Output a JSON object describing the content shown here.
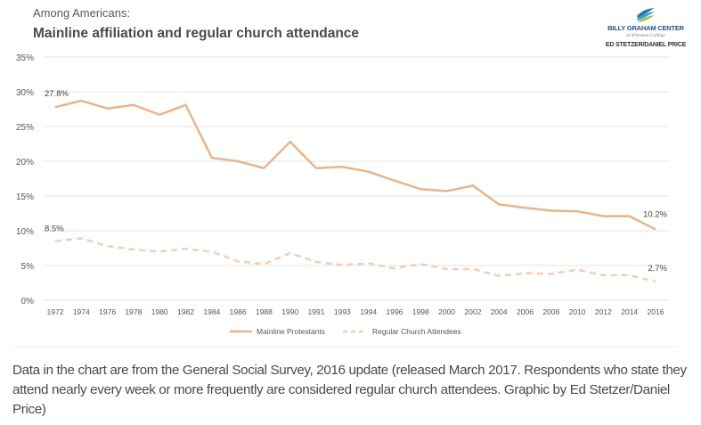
{
  "header": {
    "subtitle": "Among Americans:",
    "title": "Mainline affiliation and regular church attendance"
  },
  "logo": {
    "name": "BILLY GRAHAM CENTER",
    "sub": "at Wheaton College",
    "credit": "ED STETZER/DANIEL PRICE"
  },
  "caption": "Data in the chart are from the General Social Survey, 2016 update (released March 2017. Respondents who state they attend nearly every week or more frequently are considered regular church attendees. Graphic by Ed Stetzer/Daniel Price)",
  "chart_data": {
    "type": "line",
    "title": "Mainline affiliation and regular church attendance",
    "subtitle": "Among Americans:",
    "xlabel": "",
    "ylabel": "",
    "ylim": [
      0,
      35
    ],
    "yticks": [
      0,
      5,
      10,
      15,
      20,
      25,
      30,
      35
    ],
    "ytick_labels": [
      "0%",
      "5%",
      "10%",
      "15%",
      "20%",
      "25%",
      "30%",
      "35%"
    ],
    "grid": true,
    "legend_position": "bottom-center",
    "categories": [
      "1972",
      "1974",
      "1976",
      "1978",
      "1980",
      "1982",
      "1984",
      "1986",
      "1988",
      "1990",
      "1991",
      "1993",
      "1994",
      "1996",
      "1998",
      "2000",
      "2002",
      "2004",
      "2006",
      "2008",
      "2010",
      "2012",
      "2014",
      "2016"
    ],
    "series": [
      {
        "name": "Mainline Protestants",
        "style": "solid",
        "color": "#e8b48c",
        "values": [
          27.8,
          28.7,
          27.6,
          28.1,
          26.7,
          28.1,
          20.5,
          20.0,
          19.0,
          22.8,
          19.0,
          19.2,
          18.5,
          17.2,
          16.0,
          15.7,
          16.5,
          13.8,
          13.3,
          12.9,
          12.8,
          12.1,
          12.1,
          10.2
        ],
        "annotations": [
          {
            "index": 0,
            "text": "27.8%"
          },
          {
            "index": 23,
            "text": "10.2%"
          }
        ]
      },
      {
        "name": "Regular Church Attendees",
        "style": "dashed",
        "color": "#f2cfb4",
        "values": [
          8.5,
          8.9,
          7.8,
          7.3,
          7.0,
          7.4,
          7.0,
          5.6,
          5.2,
          6.8,
          5.5,
          5.1,
          5.3,
          4.6,
          5.2,
          4.5,
          4.5,
          3.5,
          3.9,
          3.8,
          4.4,
          3.6,
          3.6,
          2.7
        ],
        "annotations": [
          {
            "index": 0,
            "text": "8.5%"
          },
          {
            "index": 23,
            "text": "2.7%"
          }
        ]
      }
    ]
  }
}
